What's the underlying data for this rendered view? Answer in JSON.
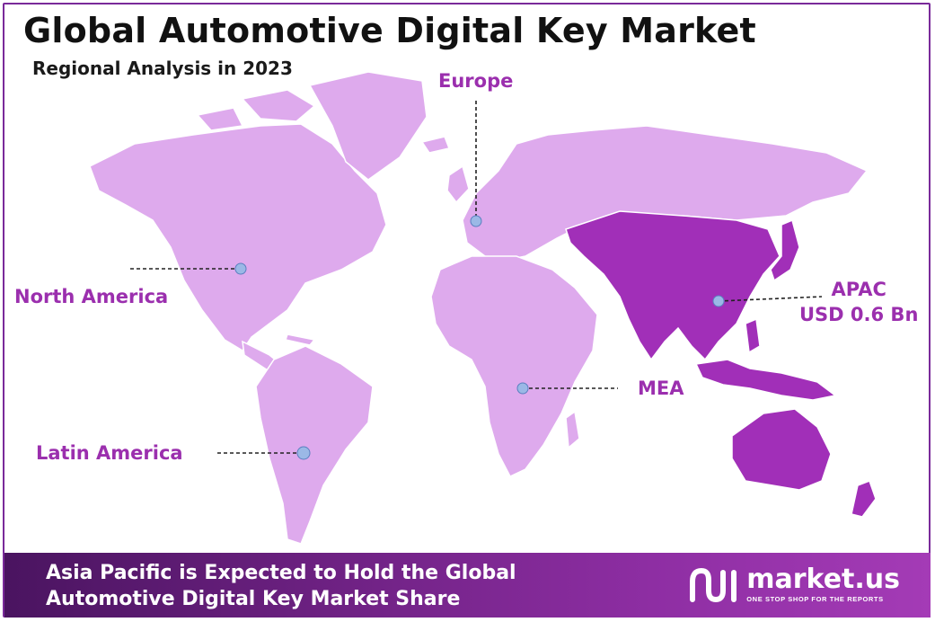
{
  "header": {
    "title": "Global Automotive Digital Key Market",
    "subtitle": "Regional Analysis in 2023"
  },
  "colors": {
    "base_region": "#deaaed",
    "highlight_region": "#a12fb8",
    "label": "#9b2fae",
    "marker": "#9bb8e6",
    "frame": "#7a2a9a"
  },
  "regions": [
    {
      "id": "north-america",
      "label": "North America",
      "highlighted": false
    },
    {
      "id": "europe",
      "label": "Europe",
      "highlighted": false
    },
    {
      "id": "apac",
      "label": "APAC",
      "value": "USD 0.6 Bn",
      "highlighted": true
    },
    {
      "id": "mea",
      "label": "MEA",
      "highlighted": false
    },
    {
      "id": "latin-america",
      "label": "Latin America",
      "highlighted": false
    }
  ],
  "footer": {
    "line1": "Asia Pacific is Expected to Hold the Global",
    "line2": "Automotive Digital Key Market Share"
  },
  "brand": {
    "logo_icon": "market-us-logo-icon",
    "name": "market.us",
    "tagline": "ONE STOP SHOP FOR THE REPORTS"
  }
}
